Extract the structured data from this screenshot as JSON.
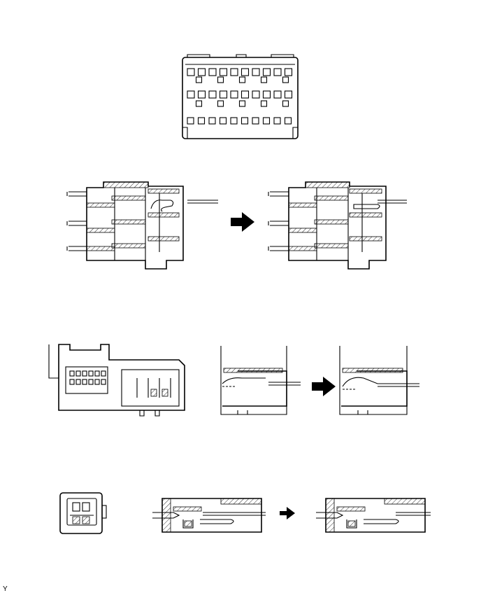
{
  "figure": {
    "corner_label": "Y",
    "panels": [
      {
        "name": "connector-front-view"
      },
      {
        "name": "terminal-insertion-large"
      },
      {
        "name": "connector-side-and-detail"
      },
      {
        "name": "small-connector-insertion"
      }
    ]
  }
}
